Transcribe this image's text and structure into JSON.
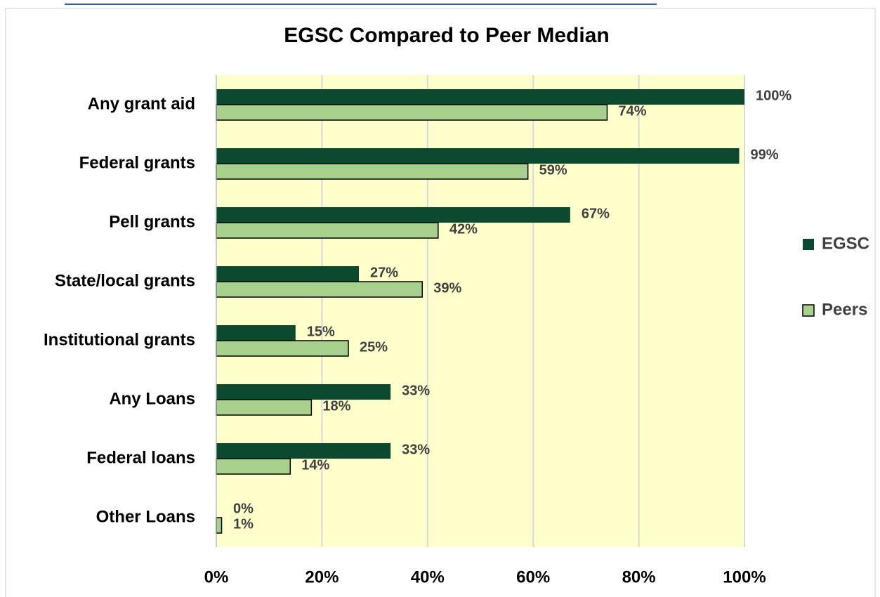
{
  "chart_data": {
    "type": "hbar",
    "title": "EGSC Compared to Peer Median",
    "categories": [
      "Any grant aid",
      "Federal grants",
      "Pell grants",
      "State/local grants",
      "Institutional grants",
      "Any Loans",
      "Federal loans",
      "Other Loans"
    ],
    "series": [
      {
        "name": "EGSC",
        "color": "#0b4a2f",
        "values": [
          100,
          99,
          67,
          27,
          15,
          33,
          33,
          0
        ],
        "value_labels": [
          "100%",
          "99%",
          "67%",
          "27%",
          "15%",
          "33%",
          "33%",
          "0%"
        ]
      },
      {
        "name": "Peers",
        "color": "#a9d18e",
        "values": [
          74,
          59,
          42,
          39,
          25,
          18,
          14,
          1
        ],
        "value_labels": [
          "74%",
          "59%",
          "42%",
          "39%",
          "25%",
          "18%",
          "14%",
          "1%"
        ]
      }
    ],
    "xlim": [
      0,
      100
    ],
    "xticks": [
      {
        "value": 0,
        "label": "0%"
      },
      {
        "value": 20,
        "label": "20%"
      },
      {
        "value": 40,
        "label": "40%"
      },
      {
        "value": 60,
        "label": "60%"
      },
      {
        "value": 80,
        "label": "80%"
      },
      {
        "value": 100,
        "label": "100%"
      }
    ],
    "grid": true,
    "legend": "right"
  }
}
